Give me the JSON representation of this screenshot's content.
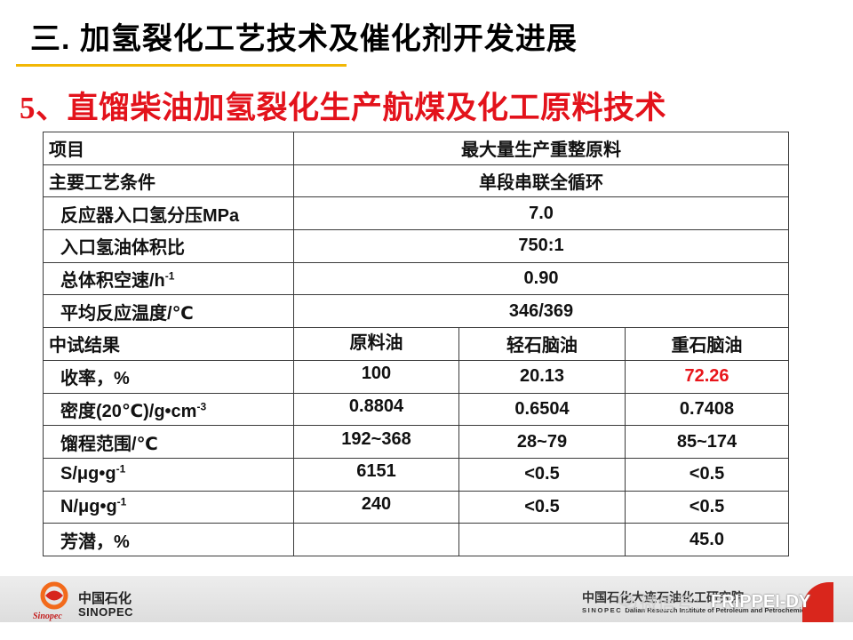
{
  "slide": {
    "title": "三. 加氢裂化工艺技术及催化剂开发进展",
    "subtitle": "5、直馏柴油加氢裂化生产航煤及化工原料技术",
    "colors": {
      "title": "#000000",
      "subtitle": "#e3121b",
      "title_rule": "#f2b705",
      "highlight": "#e8161b",
      "footer_accent": "#d9261c"
    }
  },
  "table": {
    "conditions": [
      {
        "label": "项目",
        "value": "最大量生产重整原料"
      },
      {
        "label": "主要工艺条件",
        "value": "单段串联全循环"
      },
      {
        "label": "反应器入口氢分压MPa",
        "value": "7.0"
      },
      {
        "label": "入口氢油体积比",
        "value": "750:1"
      },
      {
        "label": "总体积空速/h",
        "label_sup": "-1",
        "value": "0.90"
      },
      {
        "label": "平均反应温度/℃",
        "value": "346/369"
      }
    ],
    "results_header": [
      "中试结果",
      "原料油",
      "轻石脑油",
      "重石脑油"
    ],
    "results": [
      {
        "label": "收率，%",
        "values": [
          "100",
          "20.13",
          "72.26"
        ]
      },
      {
        "label": "密度(20℃)/g•cm",
        "label_sup": "-3",
        "values": [
          "0.8804",
          "0.6504",
          "0.7408"
        ]
      },
      {
        "label": "馏程范围/℃",
        "values": [
          "192~368",
          "28~79",
          "85~174"
        ]
      },
      {
        "label": "S/μg•g",
        "label_sup": "-1",
        "values": [
          "6151",
          "<0.5",
          "<0.5"
        ]
      },
      {
        "label": "N/μg•g",
        "label_sup": "-1",
        "values": [
          "240",
          "<0.5",
          "<0.5"
        ]
      },
      {
        "label": "芳潜，%",
        "values": [
          "",
          "",
          "45.0"
        ]
      }
    ]
  },
  "footer": {
    "logo_text": "Sinopec",
    "brand_cn": "中国石化",
    "brand_en": "SINOPEC",
    "institute_cn": "中国石化大连石油化工研究院",
    "institute_en_prefix": "SINOPEC",
    "institute_en": "Dalian Research Institute of Petroleum and Petrochemicals",
    "watermark": {
      "icon": "wechat-icon",
      "label": "微信号：",
      "account": "FRIPPEI-DY"
    }
  }
}
